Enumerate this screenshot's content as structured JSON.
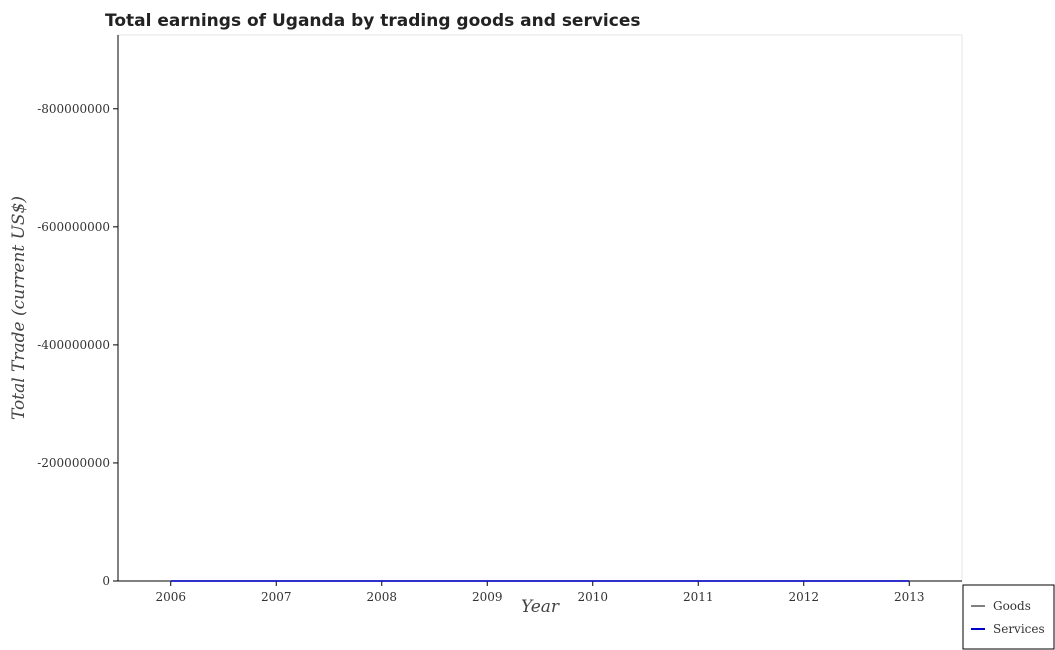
{
  "chart_data": {
    "type": "line",
    "title": "Total earnings of Uganda by trading goods and services",
    "xlabel": "Year",
    "ylabel": "Total Trade (current US$)",
    "x": [
      "2006",
      "2007",
      "2008",
      "2009",
      "2010",
      "2011",
      "2012",
      "2013"
    ],
    "y_ticks": [
      0,
      -200000000,
      -400000000,
      -600000000,
      -800000000
    ],
    "y_tick_labels": [
      "0",
      "-200000000",
      "-400000000",
      "-600000000",
      "-800000000"
    ],
    "ylim": [
      0,
      -925000000
    ],
    "y_inverted": true,
    "grid": false,
    "legend_position": "bottom-right",
    "series": [
      {
        "name": "Goods",
        "color": "#808080",
        "values": [
          0,
          0,
          0,
          0,
          0,
          0,
          0,
          0
        ]
      },
      {
        "name": "Services",
        "color": "#0000cd",
        "values": [
          0,
          0,
          0,
          0,
          0,
          0,
          0,
          0
        ]
      }
    ]
  }
}
